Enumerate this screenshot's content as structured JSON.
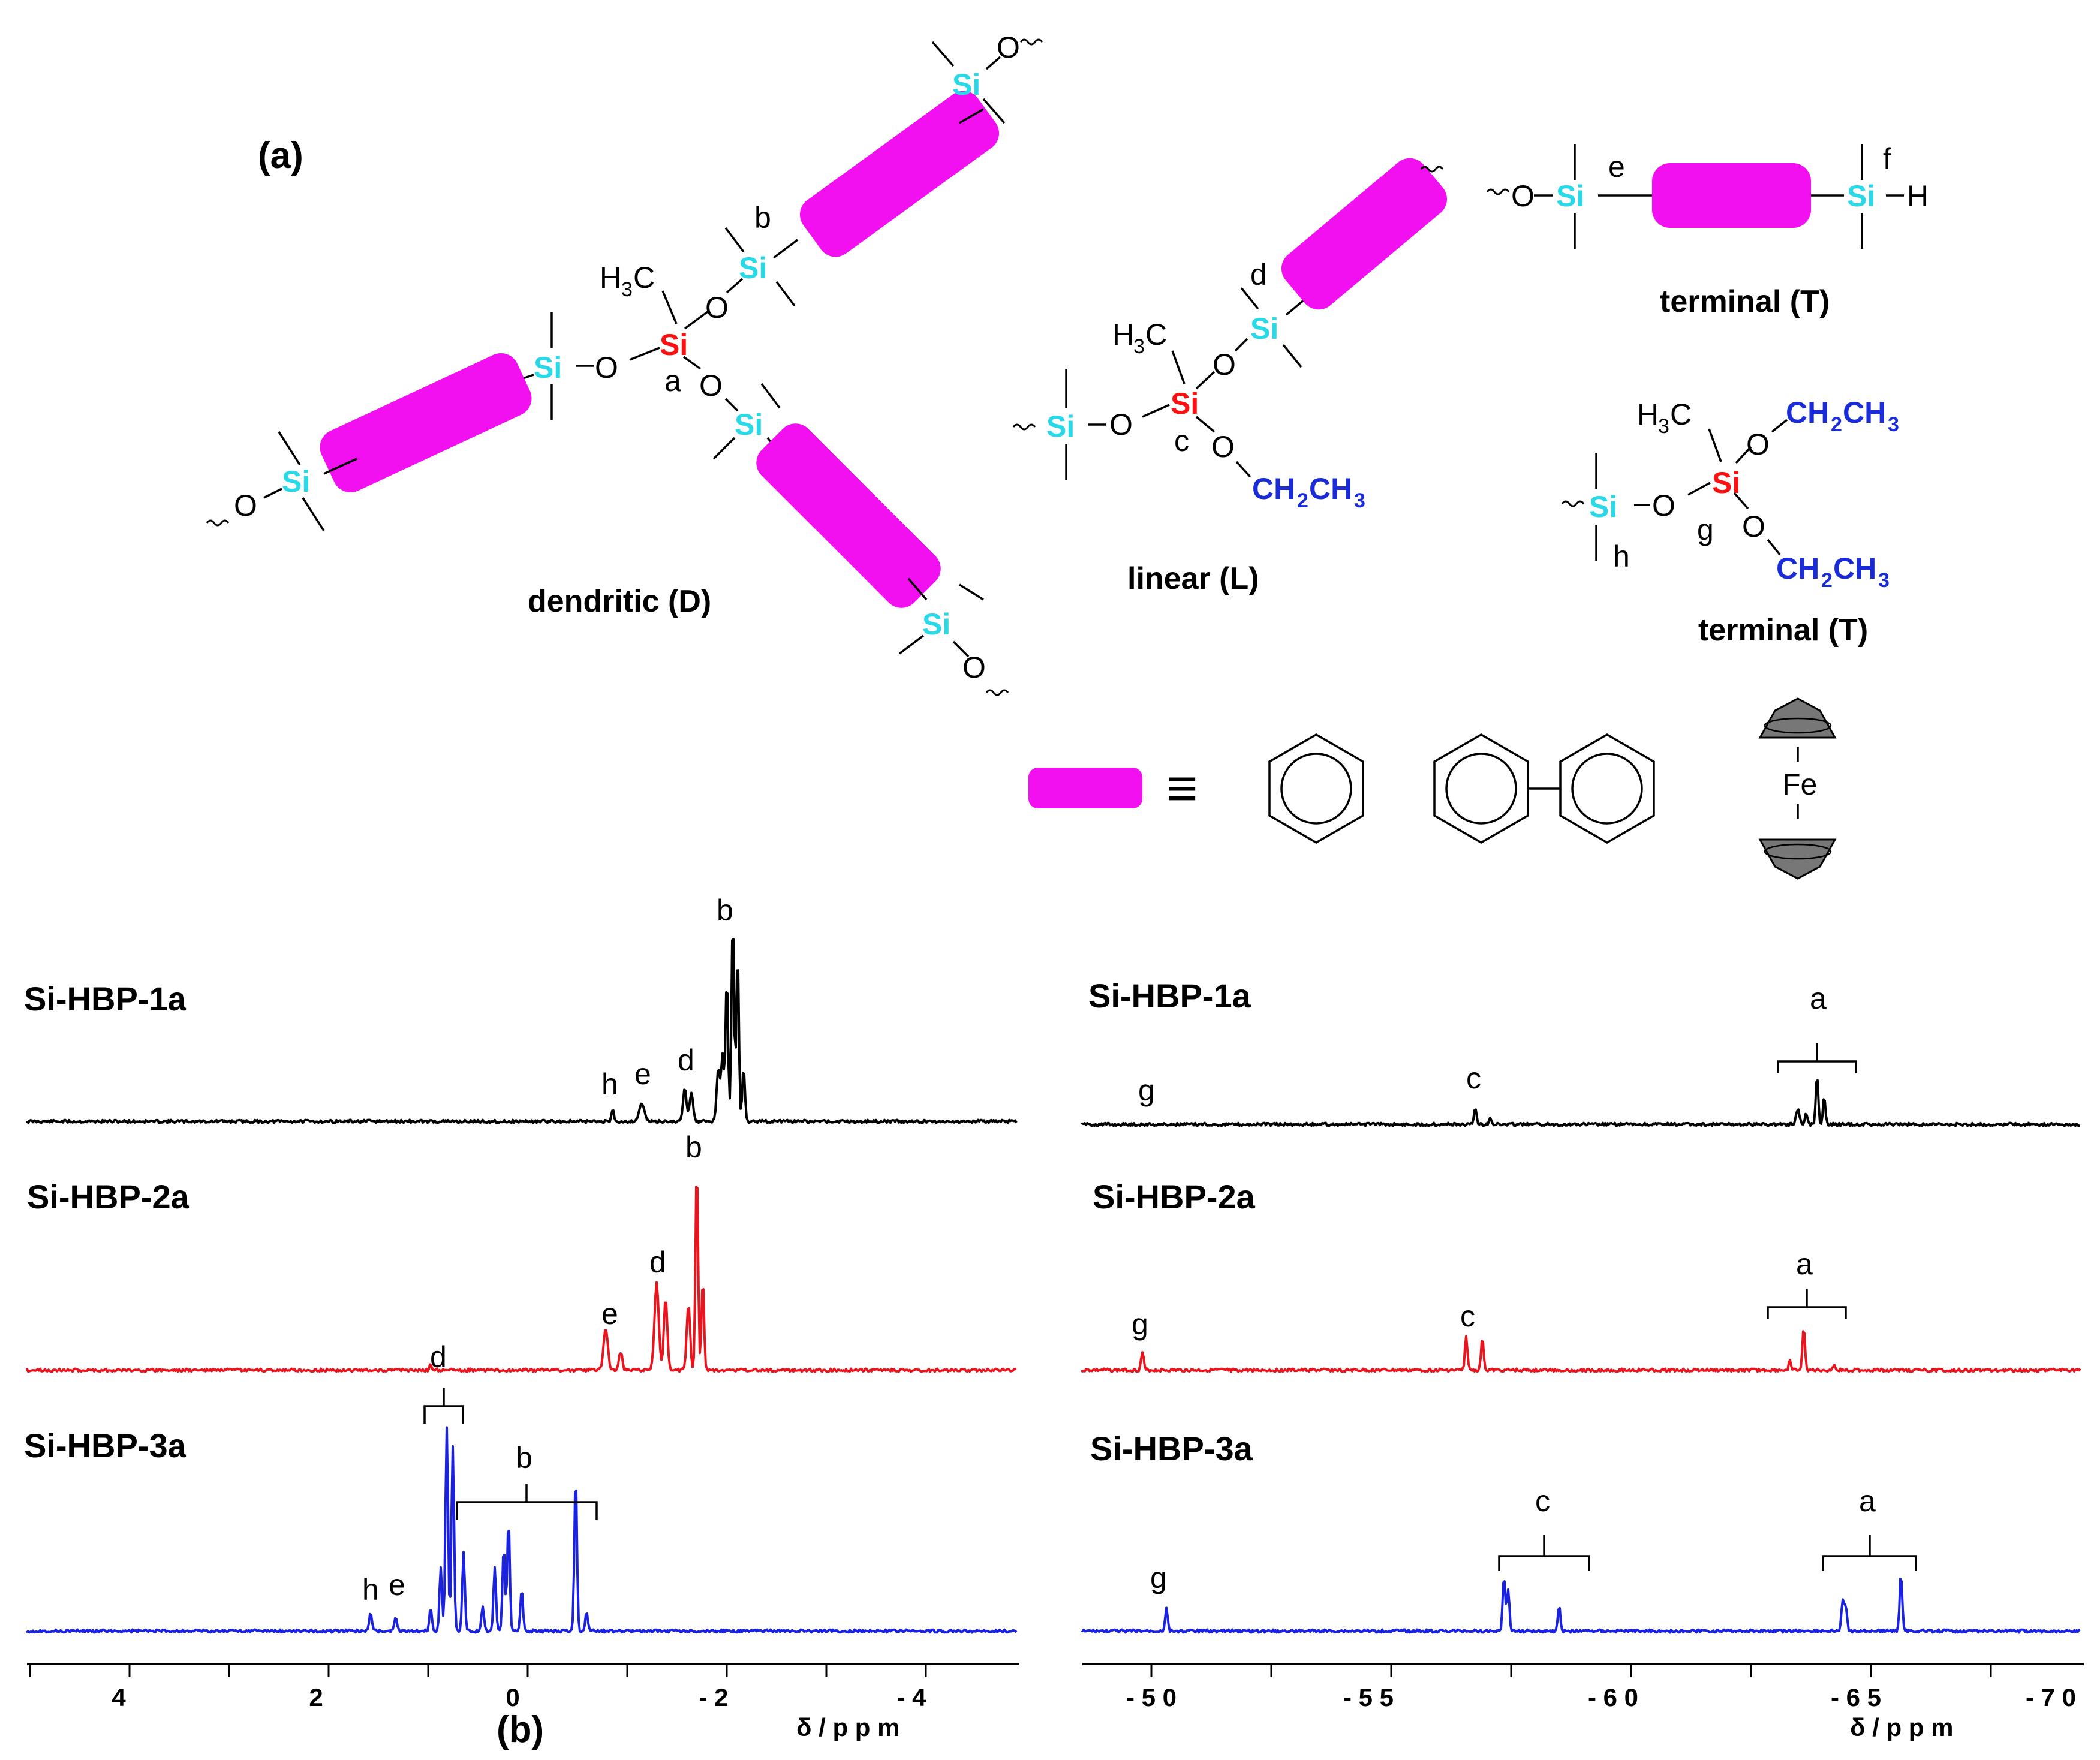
{
  "panel_a": {
    "label": "(a)",
    "atoms": {
      "si": "Si",
      "o": "O",
      "h": "H",
      "fe": "Fe",
      "methyl_c": "C",
      "methyl_h": "H",
      "methyl_sub": "3"
    },
    "ethyl": {
      "p1": "CH",
      "s1": "2",
      "p2": "CH",
      "s2": "3"
    },
    "site_labels": {
      "a": "a",
      "b": "b",
      "c": "c",
      "d": "d",
      "e": "e",
      "f": "f",
      "g": "g",
      "h": "h"
    },
    "structures": {
      "dendritic": "dendritic (D)",
      "linear": "linear (L)",
      "terminal1": "terminal (T)",
      "terminal2": "terminal (T)"
    },
    "equiv_symbol": "≡"
  },
  "panel_b": {
    "label": "(b)",
    "xlabel": "δ / p p m",
    "left_ticks": [
      "4",
      "2",
      "0",
      "- 2",
      "- 4"
    ],
    "right_ticks": [
      "- 5 0",
      "- 5 5",
      "- 6 0",
      "- 6 5",
      "- 7 0"
    ],
    "spectra": [
      {
        "name": "Si-HBP-1a",
        "color": "#000000"
      },
      {
        "name": "Si-HBP-2a",
        "color": "#e8141e"
      },
      {
        "name": "Si-HBP-3a",
        "color": "#1a22e0"
      }
    ]
  },
  "colors": {
    "si_linker": "#2ad9e8",
    "si_core": "#ff1010",
    "ethyl": "#1a2cd8",
    "spacer": "#f20ff0"
  }
}
